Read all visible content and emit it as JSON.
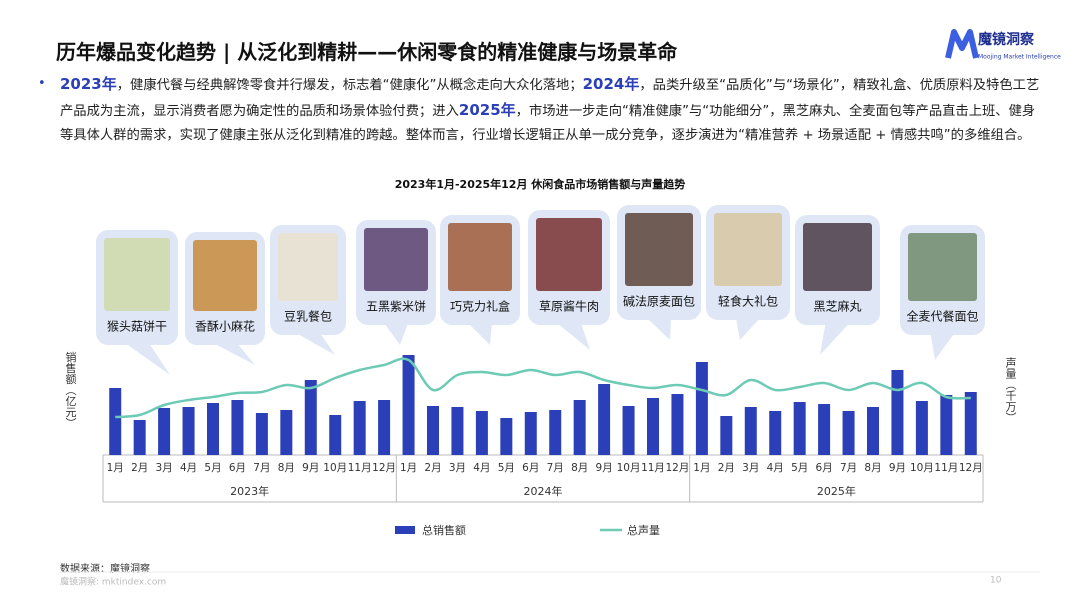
{
  "header": {
    "title": "历年爆品变化趋势 | 从泛化到精耕——休闲零食的精准健康与场景革命",
    "logo": "魔镜洞察",
    "logo_sub": "Moojing Market Intelligence"
  },
  "summary": [
    {
      "text": "2023年",
      "bold": true
    },
    {
      "text": "，健康代餐与经典解馋零食并行爆发，标志着“健康化”从概念走向大众化落地；",
      "bold": false
    },
    {
      "text": "2024年",
      "bold": true
    },
    {
      "text": "，品类升级至“品质化”与“场景化”，精致礼盒、优质原料及特色工艺产品成为主流，显示消费者愿为确定性的品质和场景体验付费；进入",
      "bold": false
    },
    {
      "text": "2025年",
      "bold": true
    },
    {
      "text": "，市场进一步走向“精准健康”与“功能细分”，黑芝麻丸、全麦面包等产品直击上班、健身等具体人群的需求，实现了健康主张从泛化到精准的跨越。整体而言，行业增长逻辑正从单一成分竞争，逐步演进为“精准营养 + 场景适配 + 情感共鸣”的多维组合。",
      "bold": false
    }
  ],
  "chart_data": {
    "type": "bar_line",
    "title": "2023年1月-2025年12月 休闲食品市场销售额与声量趋势",
    "y_label": "销售额（亿元）",
    "y2_label": "声量（千万）",
    "categories": [
      "1月",
      "2月",
      "3月",
      "4月",
      "5月",
      "6月",
      "7月",
      "8月",
      "9月",
      "10月",
      "11月",
      "12月",
      "1月",
      "2月",
      "3月",
      "4月",
      "5月",
      "6月",
      "7月",
      "8月",
      "9月",
      "10月",
      "11月",
      "12月",
      "1月",
      "2月",
      "3月",
      "4月",
      "5月",
      "6月",
      "7月",
      "8月",
      "9月",
      "10月",
      "11月",
      "12月"
    ],
    "year_groups": [
      "2023年",
      "2024年",
      "2025年"
    ],
    "series": [
      {
        "name": "总销售额",
        "type": "bar",
        "color": "#2b3fb8",
        "values": [
          67,
          35,
          47,
          48,
          52,
          55,
          42,
          45,
          75,
          40,
          54,
          55,
          100,
          49,
          48,
          44,
          37,
          43,
          45,
          55,
          71,
          49,
          57,
          61,
          93,
          39,
          48,
          44,
          53,
          51,
          44,
          48,
          85,
          54,
          60,
          63
        ]
      },
      {
        "name": "总声量",
        "type": "line",
        "axis": "y2",
        "color": "#6ccab5",
        "values": [
          38,
          40,
          50,
          55,
          58,
          62,
          63,
          70,
          67,
          77,
          85,
          90,
          95,
          65,
          80,
          83,
          80,
          85,
          80,
          83,
          75,
          70,
          67,
          70,
          65,
          60,
          75,
          65,
          68,
          72,
          65,
          72,
          65,
          72,
          58,
          57
        ]
      }
    ],
    "ylim": [
      0,
      100
    ],
    "y2lim": [
      0,
      100
    ],
    "callouts": [
      "猴头菇饼干",
      "香酥小麻花",
      "豆乳餐包",
      "五黑紫米饼",
      "巧克力礼盒",
      "草原酱牛肉",
      "碱法原麦面包",
      "轻食大礼包",
      "黑芝麻丸",
      "全麦代餐面包"
    ]
  },
  "footer": {
    "source": "数据来源：魔镜洞察",
    "site": "魔镜洞察: mktindex.com",
    "page": "10"
  }
}
